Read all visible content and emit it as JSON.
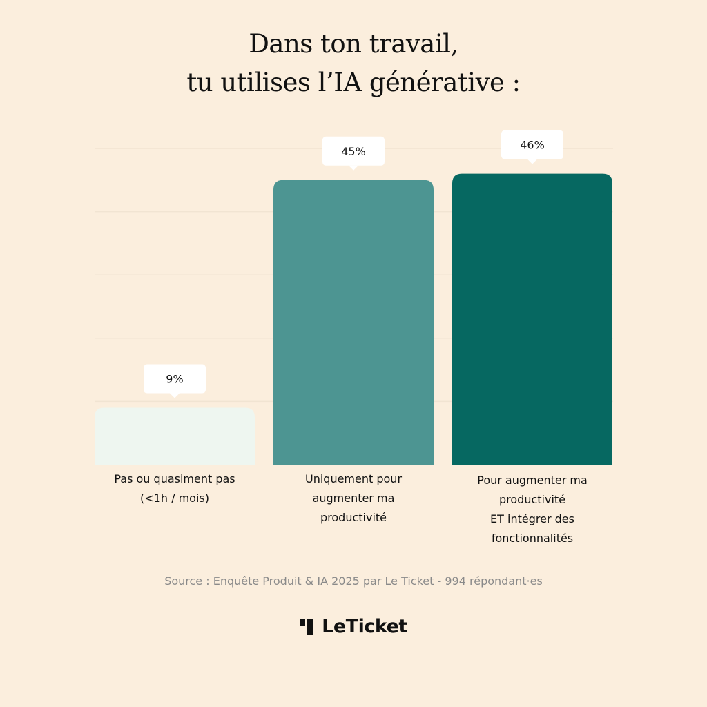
{
  "chart_data": {
    "type": "bar",
    "title": "Dans ton travail, tu utilises l’IA générative  :",
    "title_lines": [
      "Dans ton travail,",
      "tu utilises l’IA générative  :"
    ],
    "categories": [
      "Pas ou quasiment pas (<1h / mois)",
      "Uniquement pour augmenter ma productivité",
      "Pour augmenter ma productivité ET intégrer des fonctionnalités"
    ],
    "category_lines": [
      [
        "Pas ou quasiment pas",
        "(<1h / mois)"
      ],
      [
        "Uniquement pour",
        "augmenter ma",
        "productivité"
      ],
      [
        "Pour augmenter ma",
        "productivité",
        "ET intégrer des",
        "fonctionnalités"
      ]
    ],
    "values": [
      9,
      45,
      46
    ],
    "value_labels": [
      "9%",
      "45%",
      "46%"
    ],
    "unit": "%",
    "ylim": [
      0,
      50
    ],
    "grid": true,
    "colors": [
      "#eef6f0",
      "#4d9592",
      "#066861"
    ],
    "xlabel": "",
    "ylabel": ""
  },
  "source": "Source : Enquête Produit & IA 2025 par Le Ticket - 994 répondant·es",
  "logo": {
    "text_light": "Le",
    "text_bold": "Ticket"
  },
  "colors": {
    "background": "#fbeedd",
    "gridline": "#f1e4d2",
    "bubble": "#ffffff"
  }
}
